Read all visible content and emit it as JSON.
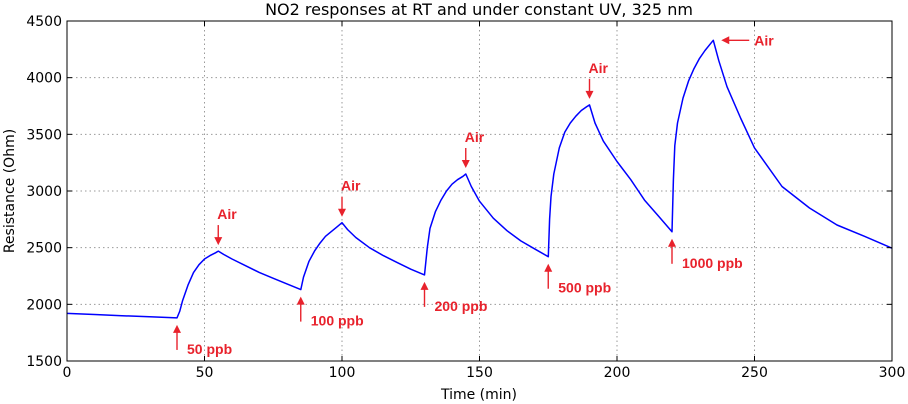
{
  "chart_data": {
    "type": "line",
    "title": "NO2 responses at RT and under constant UV, 325 nm",
    "xlabel": "Time (min)",
    "ylabel": "Resistance (Ohm)",
    "xlim": [
      0,
      300
    ],
    "ylim": [
      1500,
      4500
    ],
    "xticks": [
      0,
      50,
      100,
      150,
      200,
      250,
      300
    ],
    "yticks": [
      1500,
      2000,
      2500,
      3000,
      3500,
      4000,
      4500
    ],
    "grid": true,
    "color": "#0000ff",
    "annotation_color": "#e8222c",
    "series": [
      {
        "name": "Resistance",
        "x": [
          0,
          10,
          20,
          30,
          40,
          41,
          42,
          44,
          46,
          48,
          50,
          52,
          54,
          55,
          57,
          60,
          65,
          70,
          75,
          80,
          85,
          86,
          88,
          90,
          92,
          94,
          96,
          98,
          100,
          102,
          105,
          110,
          115,
          120,
          125,
          130,
          131,
          132,
          134,
          136,
          138,
          140,
          142,
          144,
          145,
          147,
          150,
          155,
          160,
          165,
          170,
          175,
          175.5,
          176,
          177,
          179,
          181,
          183,
          185,
          187,
          189,
          190,
          192,
          195,
          200,
          205,
          210,
          215,
          220,
          220.5,
          221,
          222,
          224,
          226,
          228,
          230,
          232,
          234,
          235,
          237,
          240,
          245,
          250,
          260,
          270,
          280,
          290,
          300
        ],
        "y": [
          1920,
          1910,
          1900,
          1890,
          1880,
          1940,
          2030,
          2170,
          2280,
          2350,
          2400,
          2430,
          2455,
          2470,
          2440,
          2400,
          2340,
          2280,
          2230,
          2180,
          2130,
          2240,
          2380,
          2470,
          2540,
          2600,
          2640,
          2680,
          2720,
          2660,
          2590,
          2500,
          2430,
          2370,
          2310,
          2260,
          2500,
          2670,
          2820,
          2920,
          3000,
          3060,
          3100,
          3130,
          3150,
          3040,
          2910,
          2760,
          2650,
          2560,
          2490,
          2420,
          2750,
          2950,
          3150,
          3380,
          3520,
          3600,
          3660,
          3710,
          3745,
          3760,
          3600,
          3440,
          3260,
          3100,
          2920,
          2780,
          2640,
          3100,
          3400,
          3600,
          3820,
          3970,
          4080,
          4170,
          4240,
          4300,
          4330,
          4150,
          3920,
          3640,
          3380,
          3040,
          2850,
          2700,
          2600,
          2495
        ]
      }
    ],
    "annotations": [
      {
        "text": "50 ppb",
        "role": "gas-on",
        "at_x": 40,
        "at_y": 1880
      },
      {
        "text": "100 ppb",
        "role": "gas-on",
        "at_x": 85,
        "at_y": 2130
      },
      {
        "text": "200 ppb",
        "role": "gas-on",
        "at_x": 130,
        "at_y": 2260
      },
      {
        "text": "500 ppb",
        "role": "gas-on",
        "at_x": 175,
        "at_y": 2420
      },
      {
        "text": "1000 ppb",
        "role": "gas-on",
        "at_x": 220,
        "at_y": 2640
      },
      {
        "text": "Air",
        "role": "air",
        "at_x": 55,
        "at_y": 2470
      },
      {
        "text": "Air",
        "role": "air",
        "at_x": 100,
        "at_y": 2720
      },
      {
        "text": "Air",
        "role": "air",
        "at_x": 145,
        "at_y": 3150
      },
      {
        "text": "Air",
        "role": "air",
        "at_x": 190,
        "at_y": 3760
      },
      {
        "text": "Air",
        "role": "air",
        "at_x": 235,
        "at_y": 4330
      }
    ]
  }
}
